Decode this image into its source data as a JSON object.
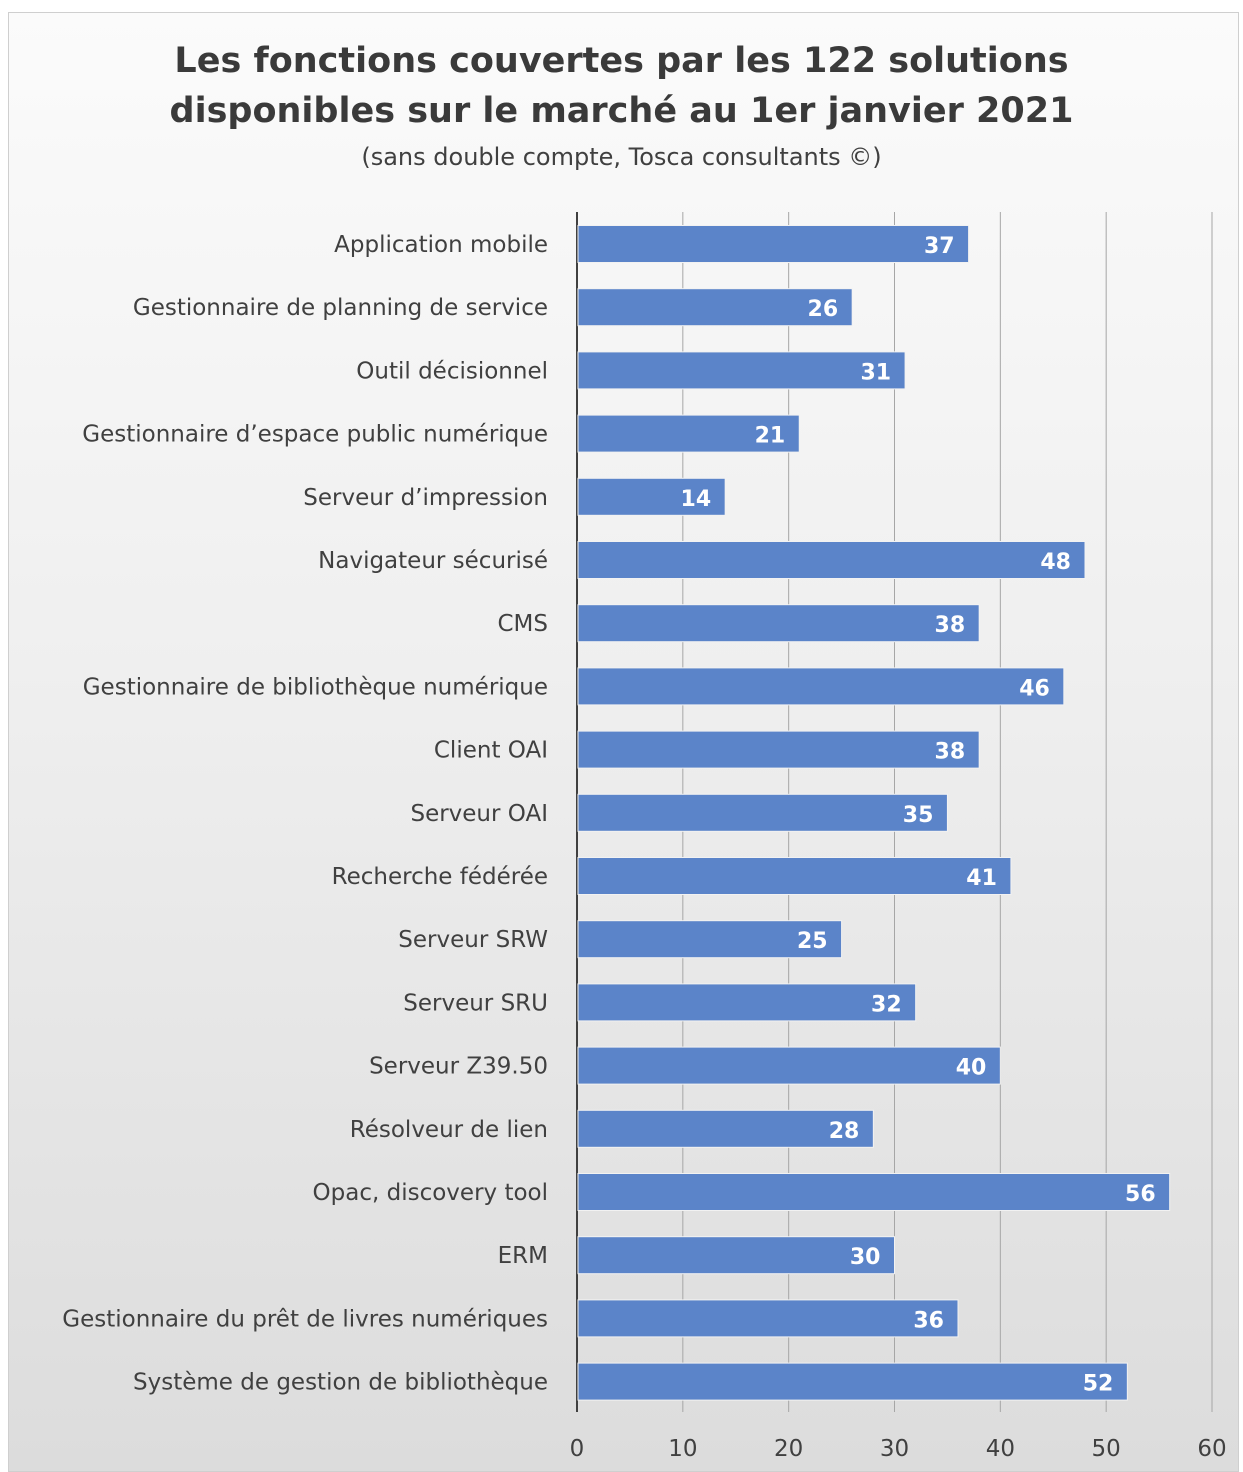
{
  "chart_data": {
    "type": "bar",
    "orientation": "horizontal",
    "title_lines": [
      "Les fonctions couvertes par les 122 solutions",
      "disponibles sur le marché au 1er janvier 2021"
    ],
    "subtitle": "(sans double compte, Tosca consultants ©)",
    "categories": [
      "Application mobile",
      "Gestionnaire de planning de service",
      "Outil décisionnel",
      "Gestionnaire d’espace public numérique",
      "Serveur d’impression",
      "Navigateur sécurisé",
      "CMS",
      "Gestionnaire de bibliothèque numérique",
      "Client OAI",
      "Serveur OAI",
      "Recherche fédérée",
      "Serveur SRW",
      "Serveur SRU",
      "Serveur Z39.50",
      "Résolveur de lien",
      "Opac, discovery tool",
      "ERM",
      "Gestionnaire du prêt de livres numériques",
      "Système de gestion de bibliothèque"
    ],
    "values": [
      37,
      26,
      31,
      21,
      14,
      48,
      38,
      46,
      38,
      35,
      41,
      25,
      32,
      40,
      28,
      56,
      30,
      36,
      52
    ],
    "xlim": [
      0,
      60
    ],
    "xticks": [
      0,
      10,
      20,
      30,
      40,
      50,
      60
    ],
    "grid": true,
    "data_labels": true,
    "legend": "none",
    "colors": {
      "bar": "#5b84c9",
      "bar_edge": "#f2f2f2",
      "grid": "#a6a6a6",
      "axis": "#404040"
    }
  }
}
